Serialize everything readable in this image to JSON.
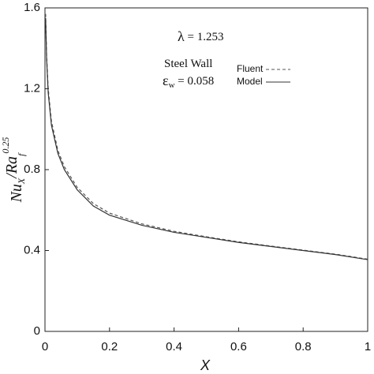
{
  "chart_data": {
    "type": "line",
    "xlabel": "X",
    "ylabel": [
      "Nu",
      "X",
      "/Ra",
      "f",
      "0.25"
    ],
    "annotations": [
      [
        "λ",
        " = 1.253"
      ],
      [
        "Steel Wall"
      ],
      [
        "ε",
        "w",
        " = 0.058"
      ]
    ],
    "x": [
      0.002,
      0.005,
      0.01,
      0.02,
      0.04,
      0.06,
      0.1,
      0.15,
      0.2,
      0.3,
      0.4,
      0.5,
      0.6,
      0.7,
      0.8,
      0.9,
      1.0
    ],
    "series": [
      {
        "name": "Fluent",
        "color": "#555555",
        "dash": true,
        "values": [
          1.57,
          1.37,
          1.2,
          1.04,
          0.895,
          0.815,
          0.712,
          0.632,
          0.585,
          0.532,
          0.495,
          0.468,
          0.443,
          0.422,
          0.402,
          0.382,
          0.357
        ]
      },
      {
        "name": "Model",
        "color": "#333333",
        "dash": false,
        "values": [
          1.55,
          1.35,
          1.18,
          1.02,
          0.88,
          0.8,
          0.7,
          0.62,
          0.575,
          0.525,
          0.49,
          0.465,
          0.44,
          0.42,
          0.4,
          0.38,
          0.355
        ]
      }
    ],
    "xlim": [
      0,
      1
    ],
    "ylim": [
      0,
      1.6
    ],
    "xticks": [
      0,
      0.2,
      0.4,
      0.6,
      0.8,
      1
    ],
    "yticks": [
      0,
      0.4,
      0.8,
      1.2,
      1.6
    ],
    "grid": false
  }
}
